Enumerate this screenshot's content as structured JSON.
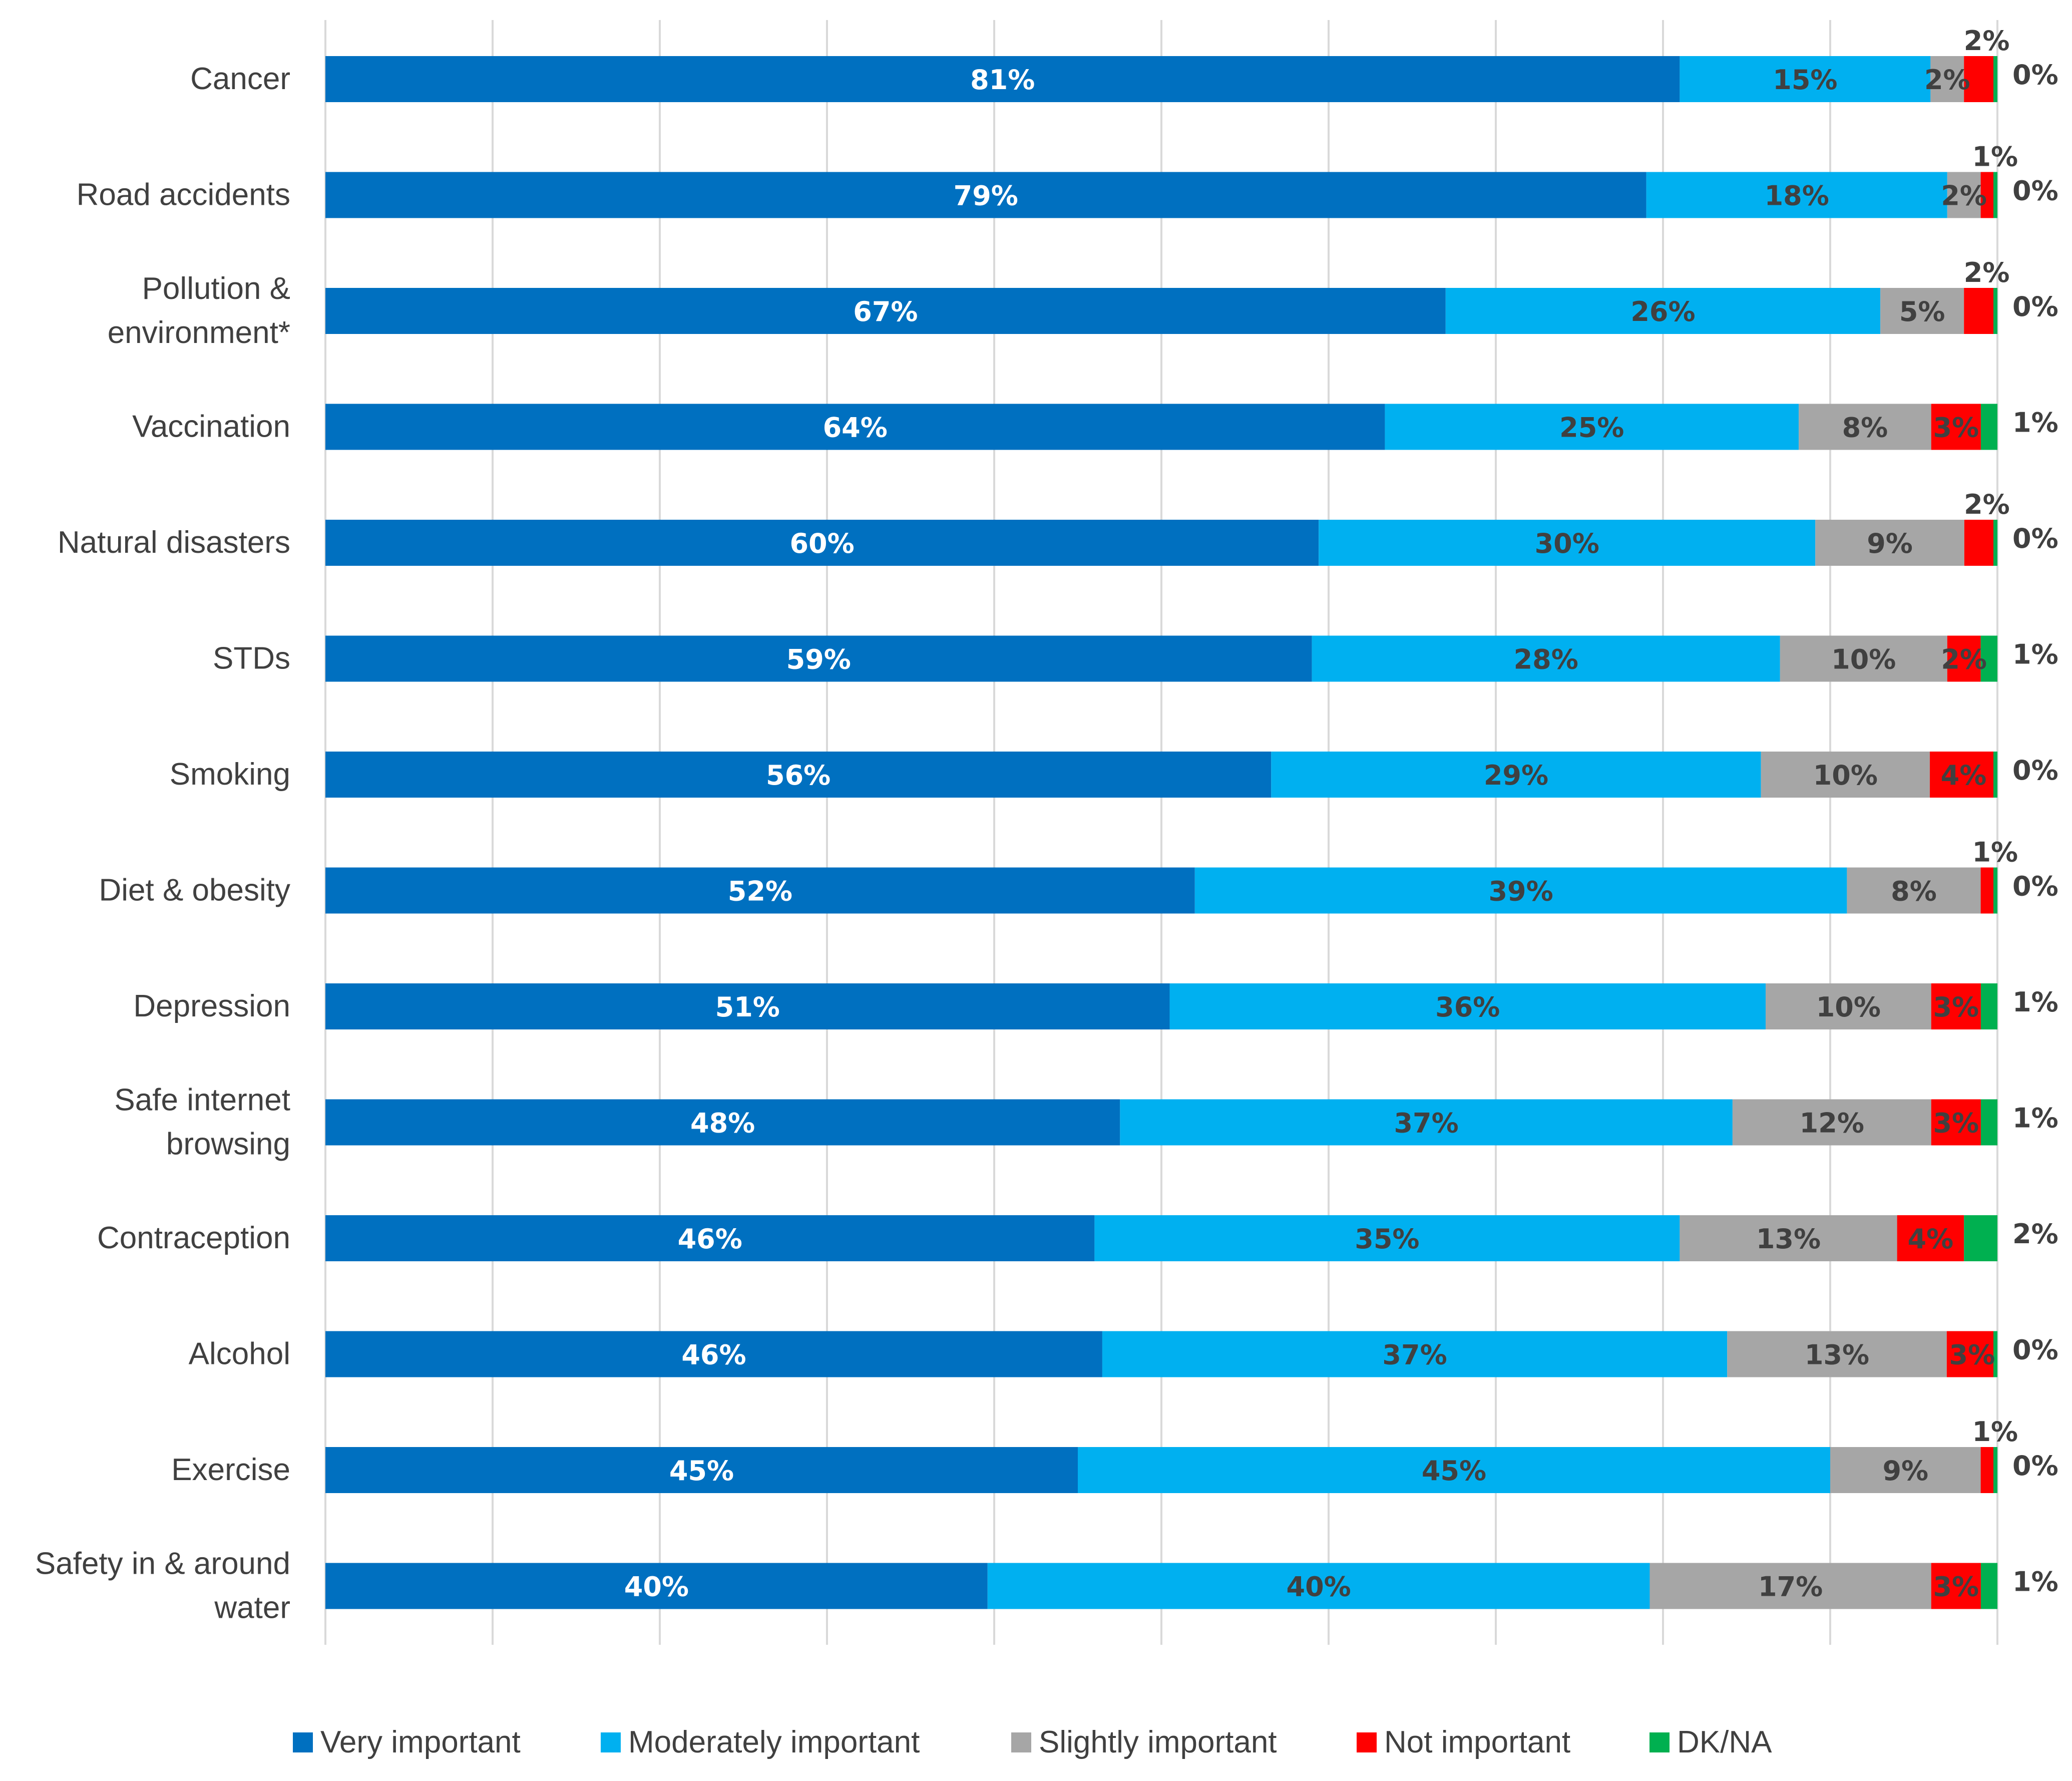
{
  "chart_data": {
    "type": "bar",
    "orientation": "horizontal",
    "stacked": true,
    "title": "",
    "xlabel": "",
    "ylabel": "",
    "xlim": [
      0,
      100
    ],
    "grid": true,
    "legend_position": "bottom",
    "categories": [
      "Cancer",
      "Road  accidents",
      "Pollution & environment*",
      "Vaccination",
      "Natural disasters",
      "STDs",
      "Smoking",
      "Diet & obesity",
      "Depression",
      "Safe internet browsing",
      "Contraception",
      "Alcohol",
      "Exercise",
      "Safety in & around water"
    ],
    "category_lines": [
      [
        "Cancer"
      ],
      [
        "Road  accidents"
      ],
      [
        "Pollution &",
        "environment*"
      ],
      [
        "Vaccination"
      ],
      [
        "Natural disasters"
      ],
      [
        "STDs"
      ],
      [
        "Smoking"
      ],
      [
        "Diet & obesity"
      ],
      [
        "Depression"
      ],
      [
        "Safe internet",
        "browsing"
      ],
      [
        "Contraception"
      ],
      [
        "Alcohol"
      ],
      [
        "Exercise"
      ],
      [
        "Safety in & around",
        "water"
      ]
    ],
    "series": [
      {
        "name": "Very important",
        "color": "#0070C0",
        "label_color": "#FFFFFF",
        "values": [
          81,
          79,
          67,
          64,
          60,
          59,
          56,
          52,
          51,
          48,
          46,
          46,
          45,
          40
        ],
        "labels": [
          "81%",
          "79%",
          "67%",
          "64%",
          "60%",
          "59%",
          "56%",
          "52%",
          "51%",
          "48%",
          "46%",
          "46%",
          "45%",
          "40%"
        ]
      },
      {
        "name": "Moderately important",
        "color": "#00B0F0",
        "label_color": "#404040",
        "values": [
          15,
          18,
          26,
          25,
          30,
          28,
          29,
          39,
          36,
          37,
          35,
          37,
          45,
          40
        ],
        "labels": [
          "15%",
          "18%",
          "26%",
          "25%",
          "30%",
          "28%",
          "29%",
          "39%",
          "36%",
          "37%",
          "35%",
          "37%",
          "45%",
          "40%"
        ]
      },
      {
        "name": "Slightly important",
        "color": "#A6A6A6",
        "label_color": "#404040",
        "values": [
          2,
          2,
          5,
          8,
          9,
          10,
          10,
          8,
          10,
          12,
          13,
          13,
          9,
          17
        ],
        "labels": [
          "2%",
          "2%",
          "5%",
          "8%",
          "9%",
          "10%",
          "10%",
          "8%",
          "10%",
          "12%",
          "13%",
          "13%",
          "9%",
          "17%"
        ]
      },
      {
        "name": "Not important",
        "color": "#FF0000",
        "label_color": "#404040",
        "values": [
          2,
          1,
          2,
          3,
          2,
          2,
          4,
          1,
          3,
          3,
          4,
          3,
          1,
          3
        ],
        "labels": [
          "2%",
          "1%",
          "2%",
          "3%",
          "2%",
          "2%",
          "4%",
          "1%",
          "3%",
          "3%",
          "4%",
          "3%",
          "1%",
          "3%"
        ]
      },
      {
        "name": "DK/NA",
        "color": "#00B050",
        "label_color": "#404040",
        "values": [
          0,
          0,
          0,
          1,
          0,
          1,
          0,
          0,
          1,
          1,
          2,
          0,
          0,
          1
        ],
        "labels": [
          "0%",
          "0%",
          "0%",
          "1%",
          "0%",
          "1%",
          "0%",
          "0%",
          "1%",
          "1%",
          "2%",
          "0%",
          "0%",
          "1%"
        ]
      }
    ]
  }
}
